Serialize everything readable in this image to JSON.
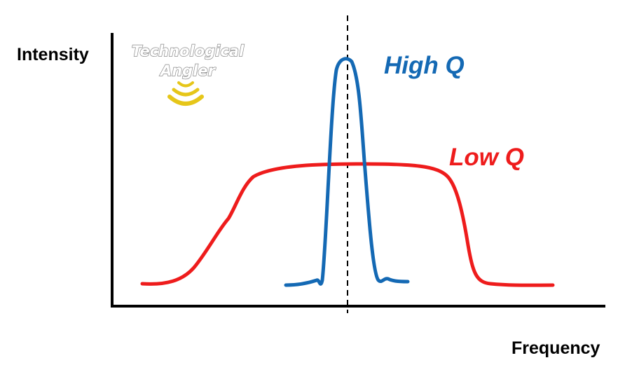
{
  "diagram": {
    "y_axis_label": "Intensity",
    "x_axis_label": "Frequency",
    "curves": [
      {
        "name": "High Q",
        "color": "#1469b4"
      },
      {
        "name": "Low Q",
        "color": "#ee1c1c"
      }
    ],
    "resonance_marker": "dashed-vertical-line",
    "axis_color": "#000000"
  },
  "logo": {
    "line1": "Technological",
    "line2": "Angler",
    "icon": "signal-waves-icon",
    "icon_color": "#e6c619"
  }
}
